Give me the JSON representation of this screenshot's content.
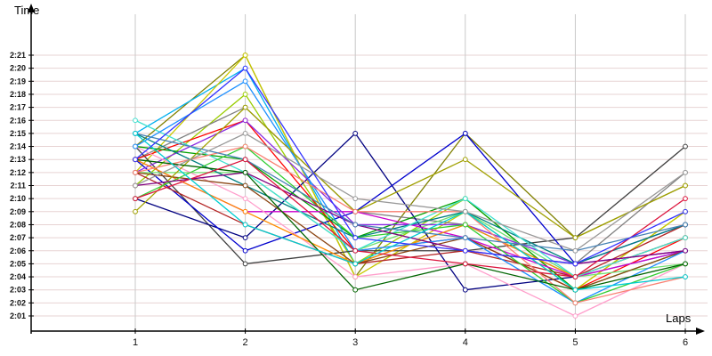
{
  "chart_data": {
    "type": "line",
    "title": "",
    "xlabel": "Laps",
    "ylabel": "Time",
    "x": [
      1,
      2,
      3,
      4,
      5,
      6
    ],
    "yticks": [
      "2:01",
      "2:02",
      "2:03",
      "2:04",
      "2:05",
      "2:06",
      "2:07",
      "2:08",
      "2:09",
      "2:10",
      "2:11",
      "2:12",
      "2:13",
      "2:14",
      "2:15",
      "2:16",
      "2:17",
      "2:18",
      "2:19",
      "2:20",
      "2:21"
    ],
    "ylim": [
      "2:01",
      "2:21"
    ],
    "grid": true,
    "legend": "none",
    "series": [
      {
        "color": "#808000",
        "values": [
          "2:14",
          "2:21",
          "2:04",
          "2:15",
          "2:07",
          "2:11"
        ]
      },
      {
        "color": "#00b0f0",
        "values": [
          "2:15",
          "2:20",
          "2:05",
          "2:08",
          "2:04",
          "2:06"
        ]
      },
      {
        "color": "#9acd00",
        "values": [
          "2:11",
          "2:18",
          "2:05",
          "2:10",
          "2:03",
          "2:09"
        ]
      },
      {
        "color": "#c8c800",
        "values": [
          "2:12",
          "2:21",
          "2:04",
          "2:09",
          "2:03",
          "2:09"
        ]
      },
      {
        "color": "#808080",
        "values": [
          "2:13",
          "2:17",
          "2:09",
          "2:08",
          "2:05",
          "2:12"
        ]
      },
      {
        "color": "#404040",
        "values": [
          "2:14",
          "2:05",
          "2:06",
          "2:06",
          "2:07",
          "2:14"
        ]
      },
      {
        "color": "#000080",
        "values": [
          "2:10",
          "2:07",
          "2:15",
          "2:03",
          "2:04",
          "2:07"
        ]
      },
      {
        "color": "#0000cd",
        "values": [
          "2:13",
          "2:06",
          "2:09",
          "2:15",
          "2:05",
          "2:08"
        ]
      },
      {
        "color": "#ff0000",
        "values": [
          "2:13",
          "2:16",
          "2:06",
          "2:07",
          "2:03",
          "2:07"
        ]
      },
      {
        "color": "#b22222",
        "values": [
          "2:12",
          "2:08",
          "2:05",
          "2:06",
          "2:04",
          "2:08"
        ]
      },
      {
        "color": "#00a000",
        "values": [
          "2:14",
          "2:13",
          "2:07",
          "2:10",
          "2:03",
          "2:06"
        ]
      },
      {
        "color": "#70e070",
        "values": [
          "2:12",
          "2:12",
          "2:06",
          "2:09",
          "2:04",
          "2:05"
        ]
      },
      {
        "color": "#cc00cc",
        "values": [
          "2:13",
          "2:09",
          "2:09",
          "2:07",
          "2:04",
          "2:06"
        ]
      },
      {
        "color": "#8a2be2",
        "values": [
          "2:12",
          "2:16",
          "2:08",
          "2:08",
          "2:05",
          "2:06"
        ]
      },
      {
        "color": "#ff9ecb",
        "values": [
          "2:14",
          "2:10",
          "2:04",
          "2:05",
          "2:01",
          "2:05"
        ]
      },
      {
        "color": "#ff8c00",
        "values": [
          "2:13",
          "2:09",
          "2:05",
          "2:08",
          "2:04",
          "2:07"
        ]
      },
      {
        "color": "#008080",
        "values": [
          "2:15",
          "2:11",
          "2:07",
          "2:09",
          "2:05",
          "2:08"
        ]
      },
      {
        "color": "#40e0d0",
        "values": [
          "2:16",
          "2:12",
          "2:06",
          "2:10",
          "2:04",
          "2:07"
        ]
      },
      {
        "color": "#8b4513",
        "values": [
          "2:12",
          "2:11",
          "2:05",
          "2:07",
          "2:03",
          "2:06"
        ]
      },
      {
        "color": "#1e90ff",
        "values": [
          "2:14",
          "2:19",
          "2:06",
          "2:07",
          "2:02",
          "2:06"
        ]
      },
      {
        "color": "#a0a000",
        "values": [
          "2:09",
          "2:17",
          "2:09",
          "2:13",
          "2:07",
          "2:11"
        ]
      },
      {
        "color": "#32cd32",
        "values": [
          "2:10",
          "2:14",
          "2:07",
          "2:08",
          "2:02",
          "2:05"
        ]
      },
      {
        "color": "#800080",
        "values": [
          "2:11",
          "2:12",
          "2:08",
          "2:06",
          "2:05",
          "2:06"
        ]
      },
      {
        "color": "#fa8072",
        "values": [
          "2:12",
          "2:14",
          "2:09",
          "2:09",
          "2:02",
          "2:04"
        ]
      },
      {
        "color": "#4682b4",
        "values": [
          "2:15",
          "2:13",
          "2:08",
          "2:07",
          "2:06",
          "2:08"
        ]
      },
      {
        "color": "#006400",
        "values": [
          "2:13",
          "2:12",
          "2:03",
          "2:05",
          "2:03",
          "2:05"
        ]
      },
      {
        "color": "#dc143c",
        "values": [
          "2:10",
          "2:13",
          "2:06",
          "2:05",
          "2:04",
          "2:10"
        ]
      },
      {
        "color": "#00ced1",
        "values": [
          "2:15",
          "2:08",
          "2:05",
          "2:09",
          "2:03",
          "2:04"
        ]
      },
      {
        "color": "#999999",
        "values": [
          "2:11",
          "2:15",
          "2:10",
          "2:09",
          "2:06",
          "2:12"
        ]
      },
      {
        "color": "#3333ff",
        "values": [
          "2:13",
          "2:20",
          "2:07",
          "2:06",
          "2:05",
          "2:09"
        ]
      }
    ]
  }
}
